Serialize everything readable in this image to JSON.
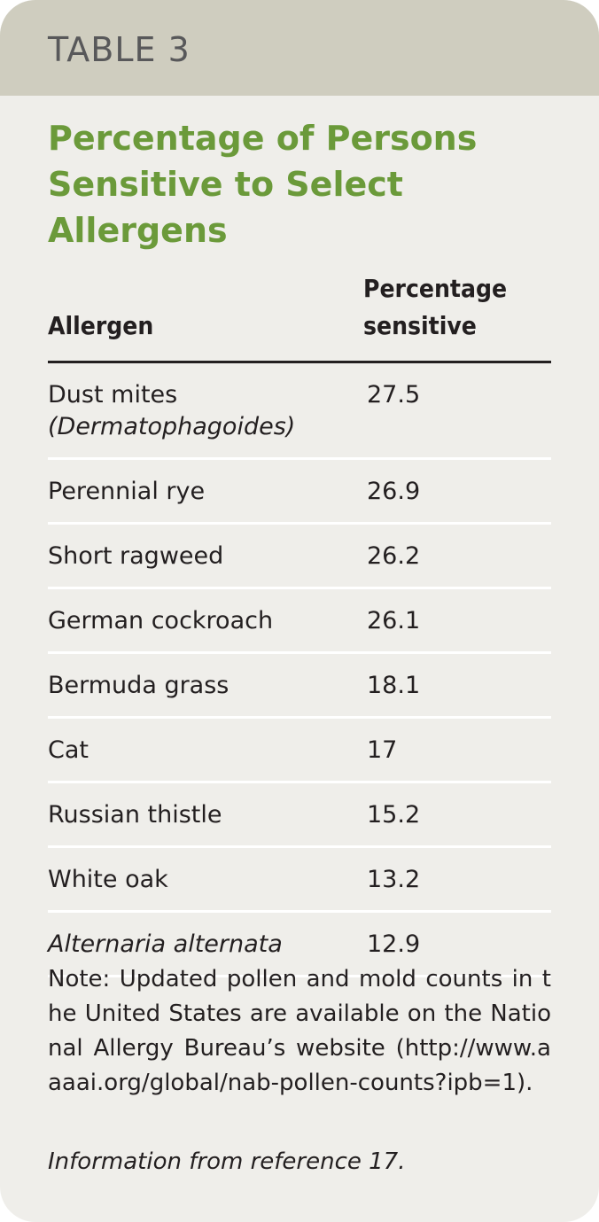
{
  "header": {
    "label": "TABLE 3"
  },
  "title": "Percentage of Persons Sensitive to Select Allergens",
  "table": {
    "columns": [
      "Allergen",
      "Percentage sensitive"
    ],
    "rows": [
      {
        "allergen": "Dust mites",
        "detail": "(Dermatophagoides)",
        "value": 27.5
      },
      {
        "allergen": "Perennial rye",
        "value": 26.9
      },
      {
        "allergen": "Short ragweed",
        "value": 26.2
      },
      {
        "allergen": "German cockroach",
        "value": 26.1
      },
      {
        "allergen": "Bermuda grass",
        "value": 18.1
      },
      {
        "allergen": "Cat",
        "value": 17
      },
      {
        "allergen": "Russian thistle",
        "value": 15.2
      },
      {
        "allergen": "White oak",
        "value": 13.2
      },
      {
        "allergen": "Alternaria alternata",
        "value": 12.9
      }
    ]
  },
  "note": {
    "label": "Note:",
    "text": "Updated pollen and mold counts in the United States are available on the National Allergy Bureau’s website (http://www.aaaai.org/global/nab-pollen-counts?ipb=1)."
  },
  "source": "Information from reference 17."
}
